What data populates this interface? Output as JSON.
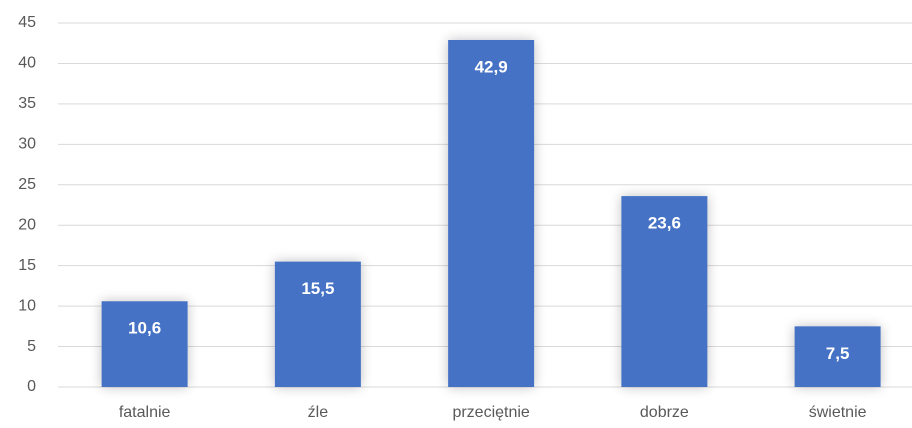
{
  "chart_data": {
    "type": "bar",
    "categories": [
      "fatalnie",
      "źle",
      "przeciętnie",
      "dobrze",
      "świetnie"
    ],
    "values": [
      10.6,
      15.5,
      42.9,
      23.6,
      7.5
    ],
    "value_labels": [
      "10,6",
      "15,5",
      "42,9",
      "23,6",
      "7,5"
    ],
    "color": "#4472c4",
    "ylim": [
      0,
      45
    ],
    "yticks": [
      0,
      5,
      10,
      15,
      20,
      25,
      30,
      35,
      40,
      45
    ],
    "grid": true
  }
}
